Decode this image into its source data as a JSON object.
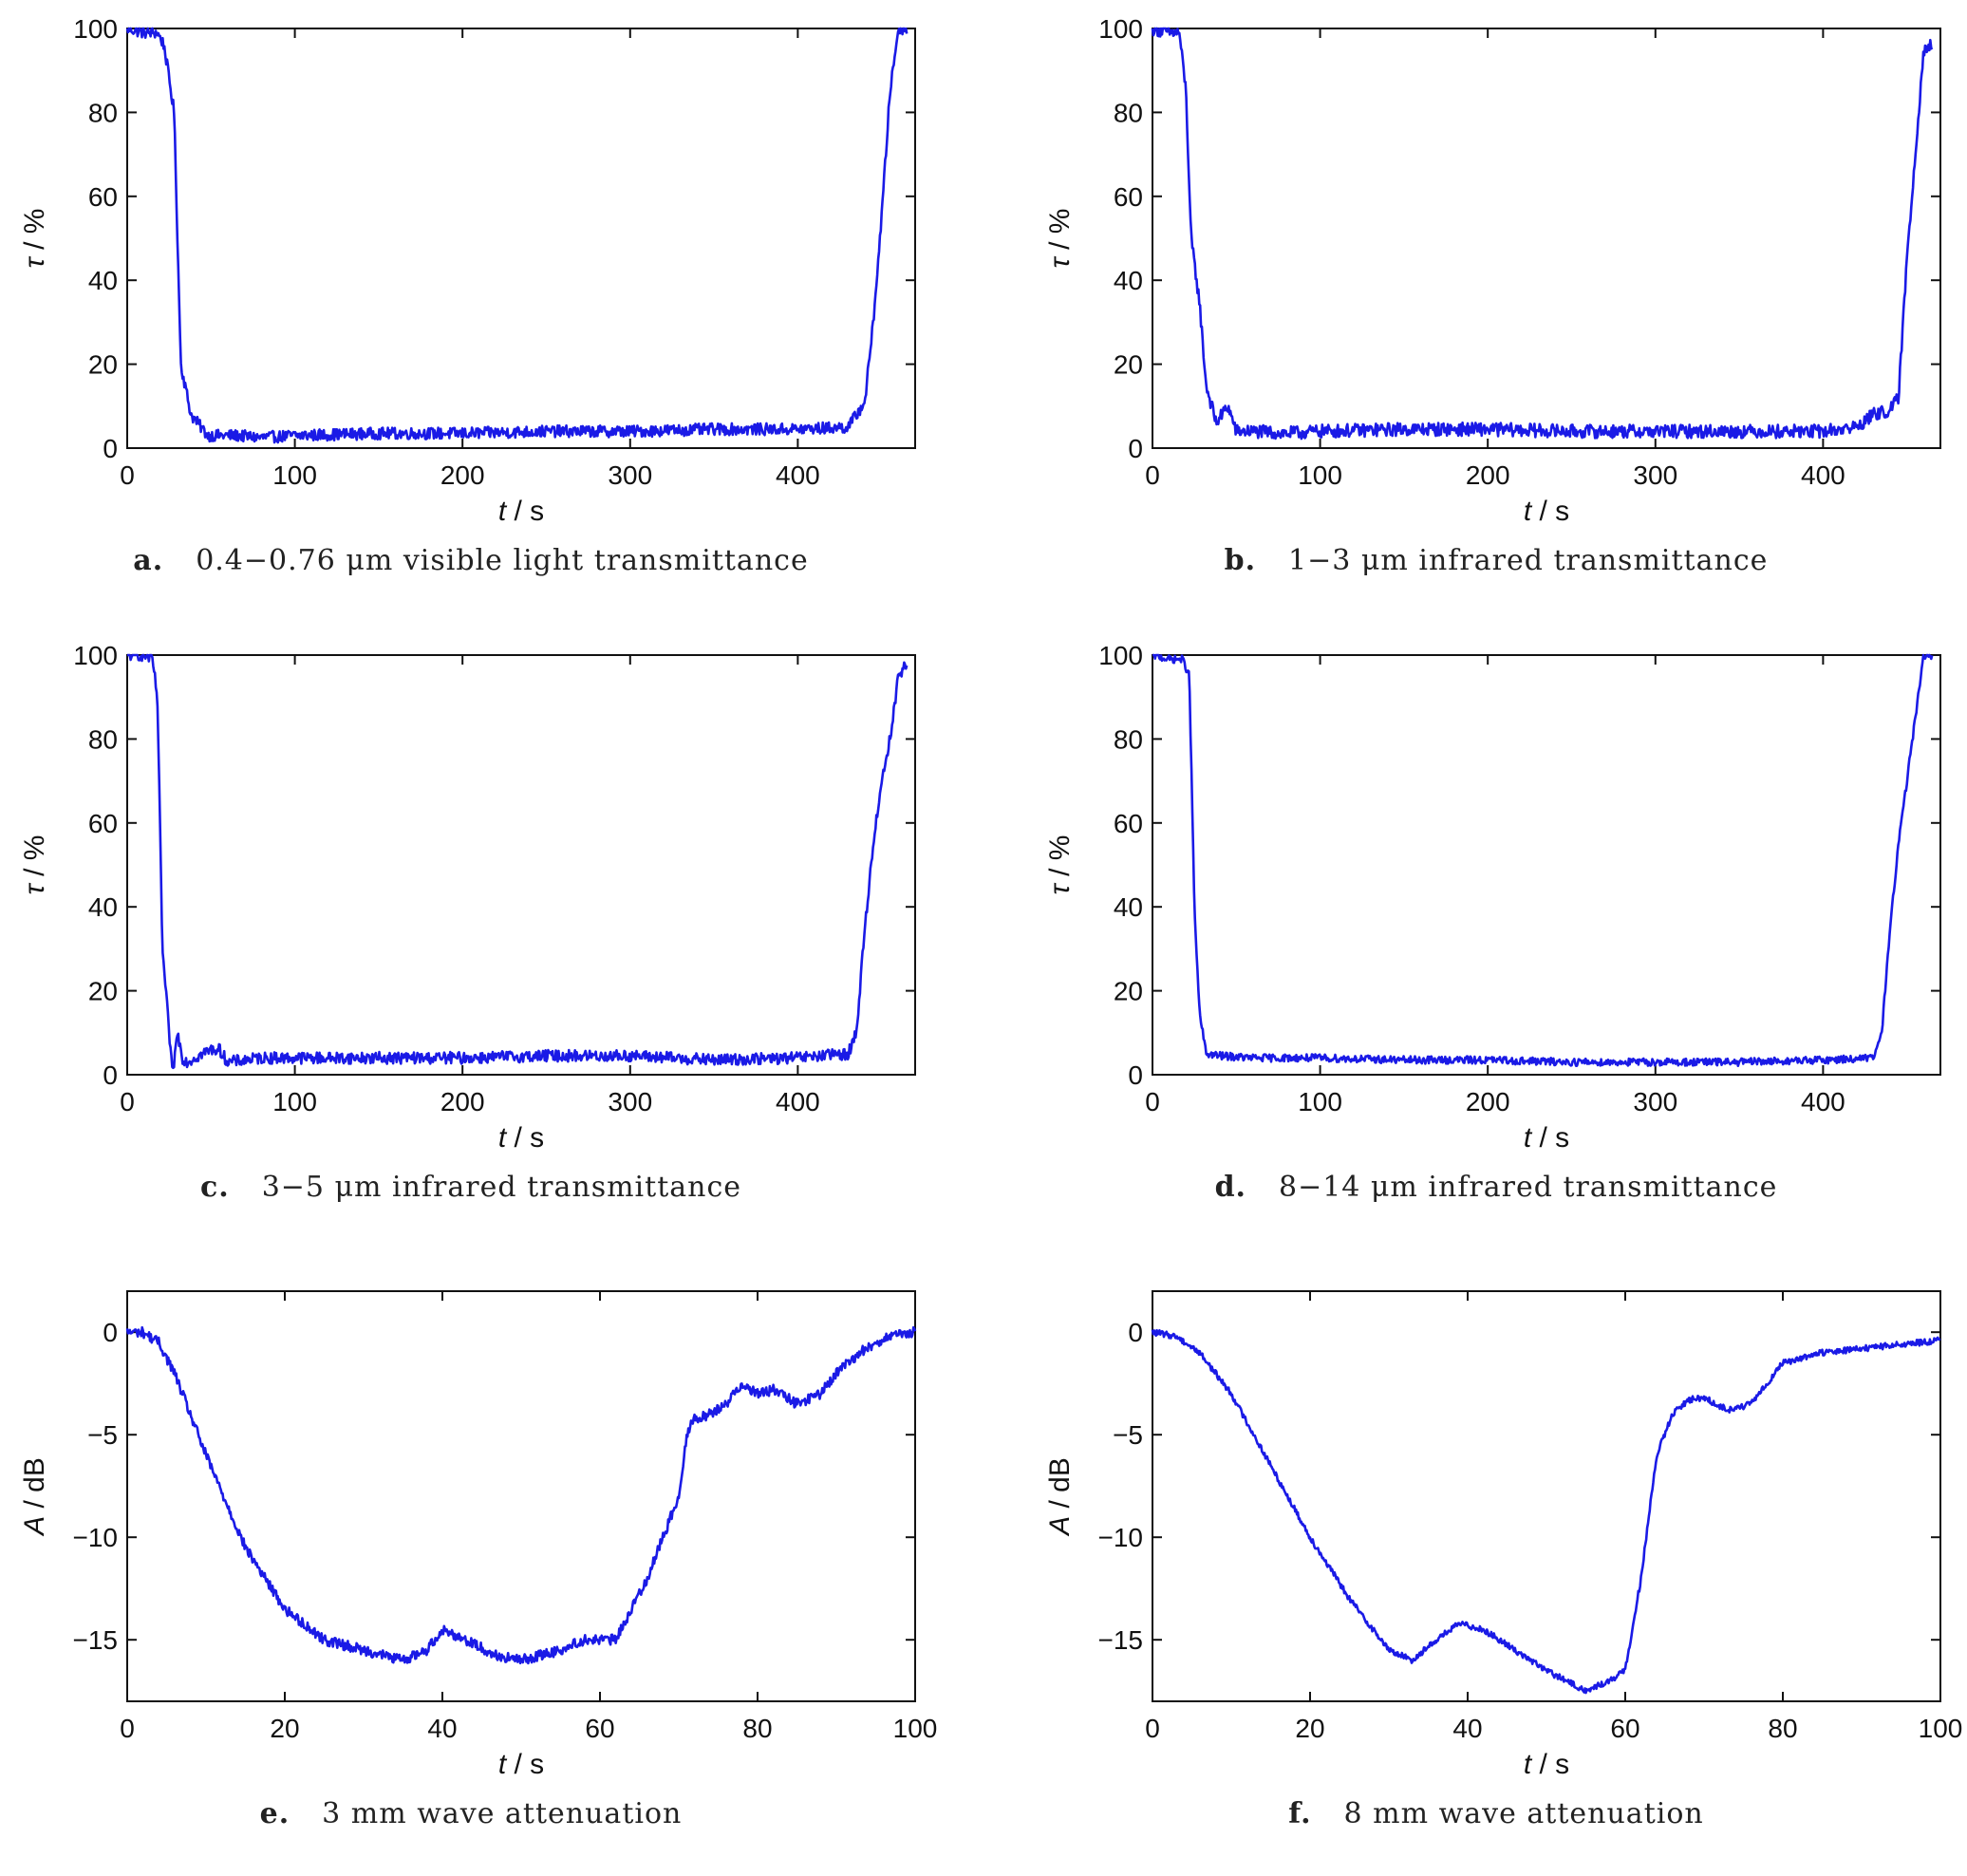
{
  "figure": {
    "series_color": "#1a1ae6"
  },
  "chart_data": [
    {
      "type": "line",
      "panel_letter": "a.",
      "caption": "0.4−0.76 μm visible light transmittance",
      "xlabel_sym": "t",
      "xlabel_unit": " / s",
      "ylabel_sym": "τ",
      "ylabel_unit": " / %",
      "xlim": [
        0,
        470
      ],
      "ylim": [
        0,
        100
      ],
      "xticks": [
        0,
        100,
        200,
        300,
        400
      ],
      "yticks": [
        0,
        20,
        40,
        60,
        80,
        100
      ],
      "xtick_labels": [
        "0",
        "100",
        "200",
        "300",
        "400"
      ],
      "ytick_labels": [
        "0",
        "20",
        "40",
        "60",
        "80",
        "100"
      ],
      "grid": false,
      "legend": "none",
      "noise": 1.4,
      "x": [
        0,
        10,
        18,
        22,
        28,
        32,
        38,
        42,
        48,
        55,
        65,
        80,
        100,
        150,
        200,
        250,
        300,
        350,
        400,
        430,
        440,
        445,
        450,
        455,
        460,
        465
      ],
      "y": [
        100,
        99,
        99,
        96,
        80,
        20,
        8,
        6,
        3,
        3,
        3,
        2.5,
        3,
        3.5,
        3.5,
        4,
        4,
        4.5,
        4.5,
        5,
        11,
        30,
        55,
        85,
        100,
        100
      ]
    },
    {
      "type": "line",
      "panel_letter": "b.",
      "caption": "1−3 μm infrared transmittance",
      "xlabel_sym": "t",
      "xlabel_unit": " / s",
      "ylabel_sym": "τ",
      "ylabel_unit": " / %",
      "xlim": [
        0,
        470
      ],
      "ylim": [
        0,
        100
      ],
      "xticks": [
        0,
        100,
        200,
        300,
        400
      ],
      "yticks": [
        0,
        20,
        40,
        60,
        80,
        100
      ],
      "xtick_labels": [
        "0",
        "100",
        "200",
        "300",
        "400"
      ],
      "ytick_labels": [
        "0",
        "20",
        "40",
        "60",
        "80",
        "100"
      ],
      "grid": false,
      "legend": "none",
      "noise": 1.6,
      "x": [
        0,
        10,
        16,
        20,
        23,
        28,
        32,
        38,
        45,
        50,
        60,
        80,
        100,
        150,
        200,
        250,
        300,
        350,
        400,
        420,
        430,
        440,
        445,
        450,
        455,
        460,
        465
      ],
      "y": [
        100,
        99,
        99,
        85,
        50,
        35,
        15,
        6,
        10,
        4,
        4,
        3.5,
        4,
        4.5,
        4.5,
        4,
        4,
        4,
        4,
        5,
        8,
        9,
        12,
        45,
        70,
        95,
        96
      ]
    },
    {
      "type": "line",
      "panel_letter": "c.",
      "caption": "3−5 μm infrared transmittance",
      "xlabel_sym": "t",
      "xlabel_unit": " / s",
      "ylabel_sym": "τ",
      "ylabel_unit": " / %",
      "xlim": [
        0,
        470
      ],
      "ylim": [
        0,
        100
      ],
      "xticks": [
        0,
        100,
        200,
        300,
        400
      ],
      "yticks": [
        0,
        20,
        40,
        60,
        80,
        100
      ],
      "xtick_labels": [
        "0",
        "100",
        "200",
        "300",
        "400"
      ],
      "ytick_labels": [
        "0",
        "20",
        "40",
        "60",
        "80",
        "100"
      ],
      "grid": false,
      "legend": "none",
      "noise": 1.4,
      "x": [
        0,
        10,
        15,
        18,
        21,
        24,
        27,
        30,
        33,
        36,
        40,
        45,
        50,
        55,
        60,
        80,
        100,
        150,
        200,
        250,
        300,
        350,
        400,
        430,
        435,
        440,
        445,
        450,
        455,
        460,
        465
      ],
      "y": [
        100,
        100,
        99,
        90,
        30,
        15,
        0,
        10,
        4,
        3,
        4,
        5,
        6,
        6,
        3,
        4,
        4,
        4,
        4,
        4.5,
        4.5,
        3.5,
        4,
        5,
        10,
        35,
        55,
        70,
        80,
        95,
        98
      ]
    },
    {
      "type": "line",
      "panel_letter": "d.",
      "caption": "8−14 μm infrared transmittance",
      "xlabel_sym": "t",
      "xlabel_unit": " / s",
      "ylabel_sym": "τ",
      "ylabel_unit": " / %",
      "xlim": [
        0,
        470
      ],
      "ylim": [
        0,
        100
      ],
      "xticks": [
        0,
        100,
        200,
        300,
        400
      ],
      "yticks": [
        0,
        20,
        40,
        60,
        80,
        100
      ],
      "xtick_labels": [
        "0",
        "100",
        "200",
        "300",
        "400"
      ],
      "ytick_labels": [
        "0",
        "20",
        "40",
        "60",
        "80",
        "100"
      ],
      "grid": false,
      "legend": "none",
      "noise": 0.9,
      "x": [
        0,
        10,
        18,
        22,
        25,
        28,
        32,
        40,
        60,
        100,
        150,
        200,
        250,
        300,
        350,
        400,
        430,
        435,
        440,
        445,
        450,
        455,
        460,
        465
      ],
      "y": [
        100,
        99,
        99,
        95,
        40,
        15,
        5,
        4.5,
        4,
        4,
        3.5,
        3.5,
        3,
        3,
        3,
        3.5,
        4,
        10,
        35,
        55,
        70,
        85,
        100,
        100
      ]
    },
    {
      "type": "line",
      "panel_letter": "e.",
      "caption": "3 mm wave attenuation",
      "xlabel_sym": "t",
      "xlabel_unit": " / s",
      "ylabel_sym": "A",
      "ylabel_unit": " / dB",
      "xlim": [
        0,
        100
      ],
      "ylim": [
        -18,
        2
      ],
      "xticks": [
        0,
        20,
        40,
        60,
        80,
        100
      ],
      "yticks": [
        0,
        -5,
        -10,
        -15
      ],
      "xtick_labels": [
        "0",
        "20",
        "40",
        "60",
        "80",
        "100"
      ],
      "ytick_labels": [
        "0",
        "−5",
        "−10",
        "−15"
      ],
      "grid": false,
      "legend": "none",
      "noise": 0.25,
      "x": [
        0,
        2,
        4,
        6,
        10,
        15,
        20,
        25,
        30,
        35,
        38,
        40,
        43,
        47,
        50,
        55,
        58,
        62,
        64,
        66,
        68,
        70,
        71,
        72,
        74,
        76,
        78,
        80,
        82,
        85,
        88,
        90,
        93,
        96,
        100
      ],
      "y": [
        0,
        0,
        -0.5,
        -2,
        -6,
        -10.5,
        -13.5,
        -15,
        -15.5,
        -16,
        -15.5,
        -14.5,
        -15,
        -15.8,
        -16,
        -15.5,
        -15,
        -15,
        -13.5,
        -12,
        -10,
        -8,
        -5,
        -4.2,
        -4,
        -3.5,
        -2.5,
        -3,
        -2.8,
        -3.5,
        -3,
        -2,
        -1,
        -0.3,
        0
      ]
    },
    {
      "type": "line",
      "panel_letter": "f.",
      "caption": "8 mm wave attenuation",
      "xlabel_sym": "t",
      "xlabel_unit": " / s",
      "ylabel_sym": "A",
      "ylabel_unit": " / dB",
      "xlim": [
        0,
        100
      ],
      "ylim": [
        -18,
        2
      ],
      "xticks": [
        0,
        20,
        40,
        60,
        80,
        100
      ],
      "yticks": [
        0,
        -5,
        -10,
        -15
      ],
      "xtick_labels": [
        "0",
        "20",
        "40",
        "60",
        "80",
        "100"
      ],
      "ytick_labels": [
        "0",
        "−5",
        "−10",
        "−15"
      ],
      "grid": false,
      "legend": "none",
      "noise": 0.15,
      "x": [
        0,
        3,
        6,
        10,
        15,
        20,
        25,
        30,
        33,
        36,
        39,
        42,
        46,
        50,
        55,
        58,
        60,
        62,
        64,
        66,
        68,
        70,
        73,
        76,
        80,
        85,
        90,
        95,
        100
      ],
      "y": [
        0,
        -0.2,
        -1,
        -3,
        -6.5,
        -10,
        -13,
        -15.5,
        -16,
        -15,
        -14.2,
        -14.5,
        -15.5,
        -16.5,
        -17.5,
        -17,
        -16.5,
        -12,
        -6,
        -4,
        -3.3,
        -3.2,
        -3.8,
        -3.5,
        -1.5,
        -1,
        -0.8,
        -0.6,
        -0.4
      ]
    }
  ]
}
